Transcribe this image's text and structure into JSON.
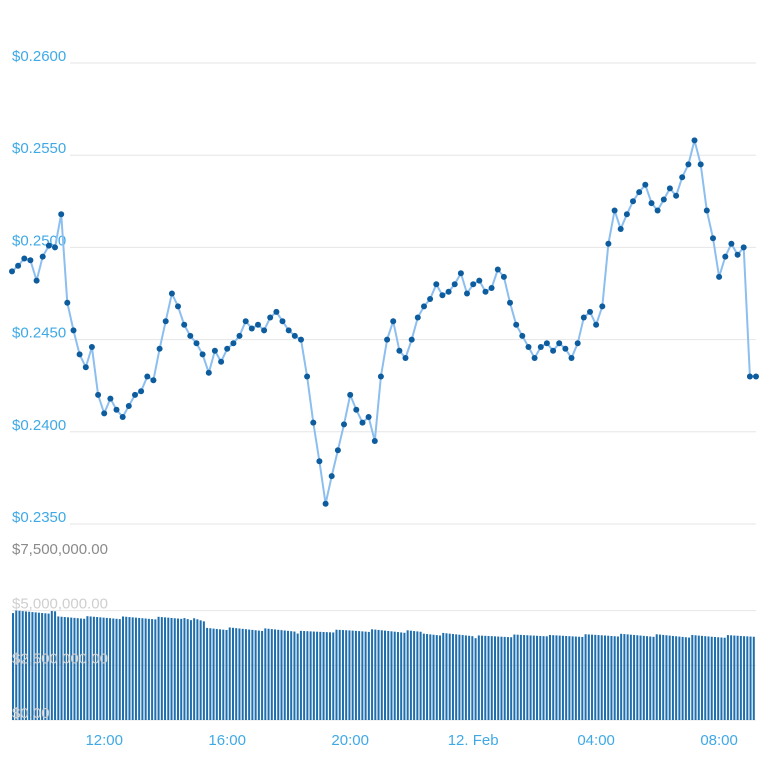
{
  "chart_data": {
    "type": "line",
    "price_series": {
      "name": "",
      "color": "#8cbfef",
      "point_color": "#0d5c9e",
      "ylim": [
        0.235,
        0.26
      ],
      "y_ticks": [
        "$0.2600",
        "$0.2550",
        "$0.2500",
        "$0.2450",
        "$0.2400",
        "$0.2350"
      ],
      "y_tick_values": [
        0.26,
        0.255,
        0.25,
        0.245,
        0.24,
        0.235
      ],
      "x_range": [
        9.0,
        33.2
      ],
      "points": [
        [
          9.0,
          0.2487
        ],
        [
          9.2,
          0.249
        ],
        [
          9.4,
          0.2494
        ],
        [
          9.6,
          0.2493
        ],
        [
          9.8,
          0.2482
        ],
        [
          10.0,
          0.2495
        ],
        [
          10.2,
          0.2501
        ],
        [
          10.4,
          0.25
        ],
        [
          10.6,
          0.2518
        ],
        [
          10.8,
          0.247
        ],
        [
          11.0,
          0.2455
        ],
        [
          11.2,
          0.2442
        ],
        [
          11.4,
          0.2435
        ],
        [
          11.6,
          0.2446
        ],
        [
          11.8,
          0.242
        ],
        [
          12.0,
          0.241
        ],
        [
          12.2,
          0.2418
        ],
        [
          12.4,
          0.2412
        ],
        [
          12.6,
          0.2408
        ],
        [
          12.8,
          0.2414
        ],
        [
          13.0,
          0.242
        ],
        [
          13.2,
          0.2422
        ],
        [
          13.4,
          0.243
        ],
        [
          13.6,
          0.2428
        ],
        [
          13.8,
          0.2445
        ],
        [
          14.0,
          0.246
        ],
        [
          14.2,
          0.2475
        ],
        [
          14.4,
          0.2468
        ],
        [
          14.6,
          0.2458
        ],
        [
          14.8,
          0.2452
        ],
        [
          15.0,
          0.2448
        ],
        [
          15.2,
          0.2442
        ],
        [
          15.4,
          0.2432
        ],
        [
          15.6,
          0.2444
        ],
        [
          15.8,
          0.2438
        ],
        [
          16.0,
          0.2445
        ],
        [
          16.2,
          0.2448
        ],
        [
          16.4,
          0.2452
        ],
        [
          16.6,
          0.246
        ],
        [
          16.8,
          0.2456
        ],
        [
          17.0,
          0.2458
        ],
        [
          17.2,
          0.2455
        ],
        [
          17.4,
          0.2462
        ],
        [
          17.6,
          0.2465
        ],
        [
          17.8,
          0.246
        ],
        [
          18.0,
          0.2455
        ],
        [
          18.2,
          0.2452
        ],
        [
          18.4,
          0.245
        ],
        [
          18.6,
          0.243
        ],
        [
          18.8,
          0.2405
        ],
        [
          19.0,
          0.2384
        ],
        [
          19.2,
          0.2361
        ],
        [
          19.4,
          0.2376
        ],
        [
          19.6,
          0.239
        ],
        [
          19.8,
          0.2404
        ],
        [
          20.0,
          0.242
        ],
        [
          20.2,
          0.2412
        ],
        [
          20.4,
          0.2405
        ],
        [
          20.6,
          0.2408
        ],
        [
          20.8,
          0.2395
        ],
        [
          21.0,
          0.243
        ],
        [
          21.2,
          0.245
        ],
        [
          21.4,
          0.246
        ],
        [
          21.6,
          0.2444
        ],
        [
          21.8,
          0.244
        ],
        [
          22.0,
          0.245
        ],
        [
          22.2,
          0.2462
        ],
        [
          22.4,
          0.2468
        ],
        [
          22.6,
          0.2472
        ],
        [
          22.8,
          0.248
        ],
        [
          23.0,
          0.2474
        ],
        [
          23.2,
          0.2476
        ],
        [
          23.4,
          0.248
        ],
        [
          23.6,
          0.2486
        ],
        [
          23.8,
          0.2475
        ],
        [
          24.0,
          0.248
        ],
        [
          24.2,
          0.2482
        ],
        [
          24.4,
          0.2476
        ],
        [
          24.6,
          0.2478
        ],
        [
          24.8,
          0.2488
        ],
        [
          25.0,
          0.2484
        ],
        [
          25.2,
          0.247
        ],
        [
          25.4,
          0.2458
        ],
        [
          25.6,
          0.2452
        ],
        [
          25.8,
          0.2446
        ],
        [
          26.0,
          0.244
        ],
        [
          26.2,
          0.2446
        ],
        [
          26.4,
          0.2448
        ],
        [
          26.6,
          0.2444
        ],
        [
          26.8,
          0.2448
        ],
        [
          27.0,
          0.2445
        ],
        [
          27.2,
          0.244
        ],
        [
          27.4,
          0.2448
        ],
        [
          27.6,
          0.2462
        ],
        [
          27.8,
          0.2465
        ],
        [
          28.0,
          0.2458
        ],
        [
          28.2,
          0.2468
        ],
        [
          28.4,
          0.2502
        ],
        [
          28.6,
          0.252
        ],
        [
          28.8,
          0.251
        ],
        [
          29.0,
          0.2518
        ],
        [
          29.2,
          0.2525
        ],
        [
          29.4,
          0.253
        ],
        [
          29.6,
          0.2534
        ],
        [
          29.8,
          0.2524
        ],
        [
          30.0,
          0.252
        ],
        [
          30.2,
          0.2526
        ],
        [
          30.4,
          0.2532
        ],
        [
          30.6,
          0.2528
        ],
        [
          30.8,
          0.2538
        ],
        [
          31.0,
          0.2545
        ],
        [
          31.2,
          0.2558
        ],
        [
          31.4,
          0.2545
        ],
        [
          31.6,
          0.252
        ],
        [
          31.8,
          0.2505
        ],
        [
          32.0,
          0.2484
        ],
        [
          32.2,
          0.2495
        ],
        [
          32.4,
          0.2502
        ],
        [
          32.6,
          0.2496
        ],
        [
          32.8,
          0.25
        ],
        [
          33.0,
          0.243
        ],
        [
          33.2,
          0.243
        ]
      ]
    },
    "volume_series": {
      "name": "",
      "color": "#1f6fae",
      "ylim": [
        0,
        7500000
      ],
      "y_ticks": [
        "$7,500,000.00",
        "$5,000,000.00",
        "$2,500,000.00",
        "$0.00"
      ],
      "y_tick_values": [
        7500000,
        5000000,
        2500000,
        0
      ]
    },
    "x_ticks": [
      "12:00",
      "16:00",
      "20:00",
      "12. Feb",
      "04:00",
      "08:00"
    ],
    "x_tick_values": [
      12,
      16,
      20,
      24,
      28,
      32
    ],
    "grid": true,
    "legend": "none"
  }
}
